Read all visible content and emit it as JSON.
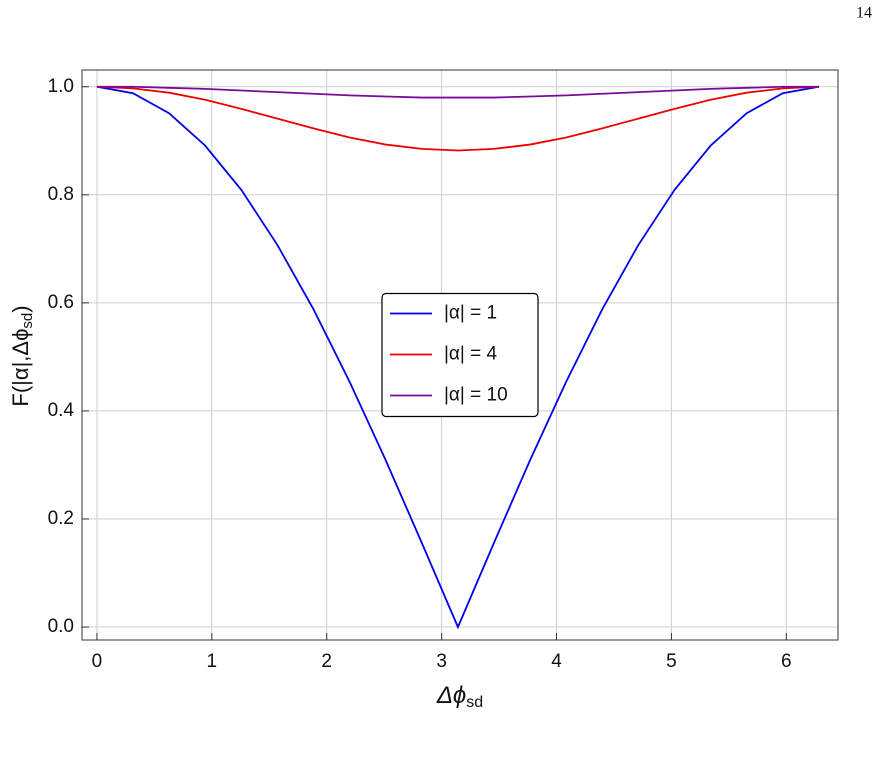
{
  "page_number": "14",
  "chart_data": {
    "type": "line",
    "xlabel": {
      "text": "Δϕ",
      "sub": "sd"
    },
    "ylabel": {
      "text": "F(|α|,Δϕ",
      "sub": "sd",
      "close": ")"
    },
    "x": [
      0,
      0.314,
      0.628,
      0.942,
      1.257,
      1.571,
      1.885,
      2.199,
      2.513,
      2.827,
      3.142,
      3.456,
      3.77,
      4.084,
      4.398,
      4.712,
      5.027,
      5.341,
      5.655,
      5.969,
      6.283
    ],
    "series": [
      {
        "name": "|α| = 1",
        "color": "#0000ee",
        "values": [
          1,
          0.988,
          0.951,
          0.891,
          0.809,
          0.707,
          0.588,
          0.454,
          0.309,
          0.156,
          0,
          0.156,
          0.309,
          0.454,
          0.588,
          0.707,
          0.809,
          0.891,
          0.951,
          0.988,
          1
        ]
      },
      {
        "name": "|α| = 4",
        "color": "#ee0000",
        "values": [
          1,
          0.997,
          0.989,
          0.976,
          0.959,
          0.941,
          0.923,
          0.906,
          0.893,
          0.885,
          0.882,
          0.885,
          0.893,
          0.906,
          0.923,
          0.941,
          0.959,
          0.976,
          0.989,
          0.997,
          1
        ]
      },
      {
        "name": "|α| = 10",
        "color": "#7a0a9a",
        "values": [
          1,
          1,
          0.998,
          0.996,
          0.993,
          0.99,
          0.987,
          0.984,
          0.982,
          0.98,
          0.98,
          0.98,
          0.982,
          0.984,
          0.987,
          0.99,
          0.993,
          0.996,
          0.998,
          1,
          1
        ]
      }
    ],
    "xlim": [
      -0.13,
      6.45
    ],
    "ylim": [
      -0.024,
      1.031
    ],
    "xticks": [
      0,
      1,
      2,
      3,
      4,
      5,
      6
    ],
    "yticks": [
      {
        "value": 0,
        "label": "0.0"
      },
      {
        "value": 0.2,
        "label": "0.2"
      },
      {
        "value": 0.4,
        "label": "0.4"
      },
      {
        "value": 0.6,
        "label": "0.6"
      },
      {
        "value": 0.8,
        "label": "0.8"
      },
      {
        "value": 1,
        "label": "1.0"
      }
    ],
    "grid": true,
    "legend": "center"
  }
}
